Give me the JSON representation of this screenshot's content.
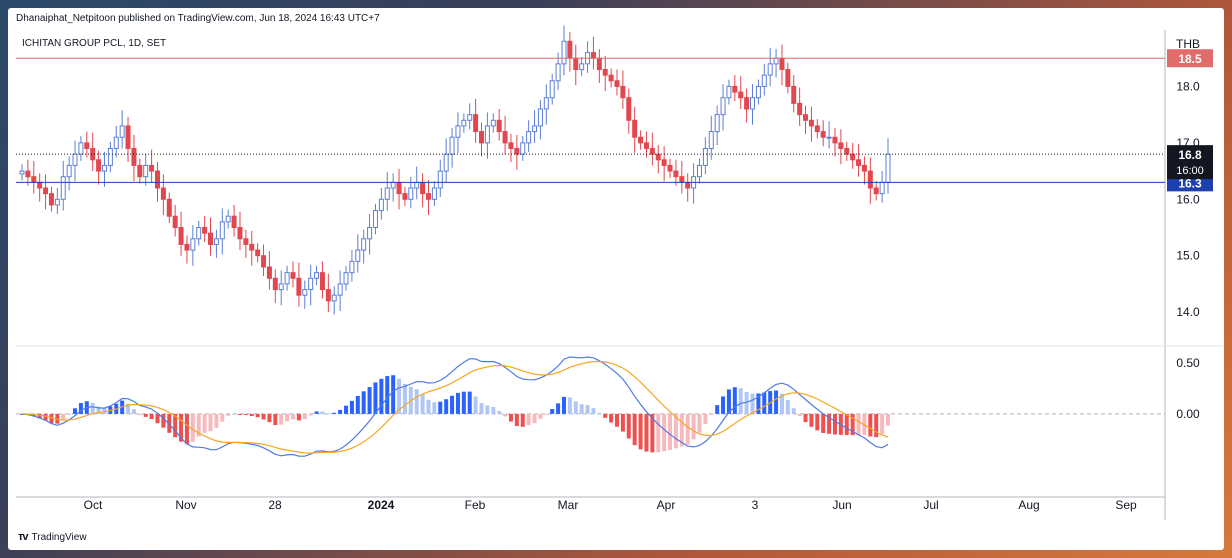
{
  "header": {
    "published": "Dhanaiphat_Netpitoon published on TradingView.com, Jun 18, 2024 16:43 UTC+7",
    "symbol": "ICHITAN GROUP PCL, 1D, SET",
    "currency": "THB"
  },
  "footer": {
    "brand": "TradingView",
    "logo": "TV-logo-icon"
  },
  "colors": {
    "up": "#5b7fd6",
    "down": "#e2474f",
    "macd": "#4f7be6",
    "signal": "#f5a623",
    "level_red": "#e06c6c",
    "level_blue": "#1e40af"
  },
  "chart_data": {
    "type": "candlestick",
    "title": "ICHITAN GROUP PCL, 1D, SET",
    "ylabel": "THB",
    "ylim": [
      13.4,
      19.0
    ],
    "price_ticks": [
      "14.0",
      "15.0",
      "16.0",
      "17.0",
      "18.0"
    ],
    "x_ticks": [
      "Oct",
      "Nov",
      "28",
      "2024",
      "Feb",
      "Mar",
      "Apr",
      "3",
      "Jun",
      "Jul",
      "Aug",
      "Sep"
    ],
    "horizontal_levels": [
      {
        "label": "18.5",
        "value": 18.5,
        "color": "#e06c6c"
      },
      {
        "label": "16.3",
        "value": 16.3,
        "color": "#1e40af"
      }
    ],
    "current_price": {
      "label": "16.8",
      "countdown": "16:00",
      "value": 16.8
    },
    "close_series": [
      16.5,
      16.4,
      16.3,
      16.2,
      16.1,
      15.9,
      16.0,
      16.4,
      16.6,
      16.8,
      17.0,
      16.9,
      16.7,
      16.5,
      16.6,
      16.9,
      17.1,
      17.3,
      16.9,
      16.6,
      16.4,
      16.6,
      16.5,
      16.2,
      16.0,
      15.7,
      15.5,
      15.2,
      15.1,
      15.3,
      15.5,
      15.4,
      15.2,
      15.3,
      15.6,
      15.7,
      15.5,
      15.3,
      15.2,
      15.1,
      15.0,
      14.8,
      14.6,
      14.4,
      14.5,
      14.7,
      14.6,
      14.3,
      14.4,
      14.6,
      14.7,
      14.4,
      14.2,
      14.3,
      14.5,
      14.7,
      14.9,
      15.1,
      15.3,
      15.5,
      15.8,
      16.0,
      16.2,
      16.3,
      16.1,
      16.0,
      16.2,
      16.3,
      16.1,
      16.0,
      16.2,
      16.5,
      16.8,
      17.1,
      17.3,
      17.4,
      17.5,
      17.2,
      17.0,
      17.3,
      17.4,
      17.2,
      17.0,
      16.9,
      16.8,
      17.0,
      17.2,
      17.3,
      17.6,
      17.8,
      18.1,
      18.4,
      18.8,
      18.5,
      18.3,
      18.4,
      18.6,
      18.5,
      18.3,
      18.2,
      18.1,
      18.0,
      17.8,
      17.4,
      17.1,
      17.0,
      16.9,
      16.8,
      16.7,
      16.6,
      16.5,
      16.4,
      16.3,
      16.2,
      16.4,
      16.6,
      16.9,
      17.2,
      17.5,
      17.8,
      18.0,
      17.9,
      17.8,
      17.6,
      17.8,
      18.0,
      18.2,
      18.4,
      18.5,
      18.3,
      18.0,
      17.7,
      17.5,
      17.4,
      17.3,
      17.2,
      17.1,
      17.1,
      17.0,
      16.9,
      16.8,
      16.7,
      16.6,
      16.5,
      16.2,
      16.1,
      16.3,
      16.8
    ],
    "indicator": {
      "name": "MACD",
      "ylim": [
        -0.8,
        0.65
      ],
      "ticks": [
        "0.50",
        "0.00"
      ]
    }
  }
}
